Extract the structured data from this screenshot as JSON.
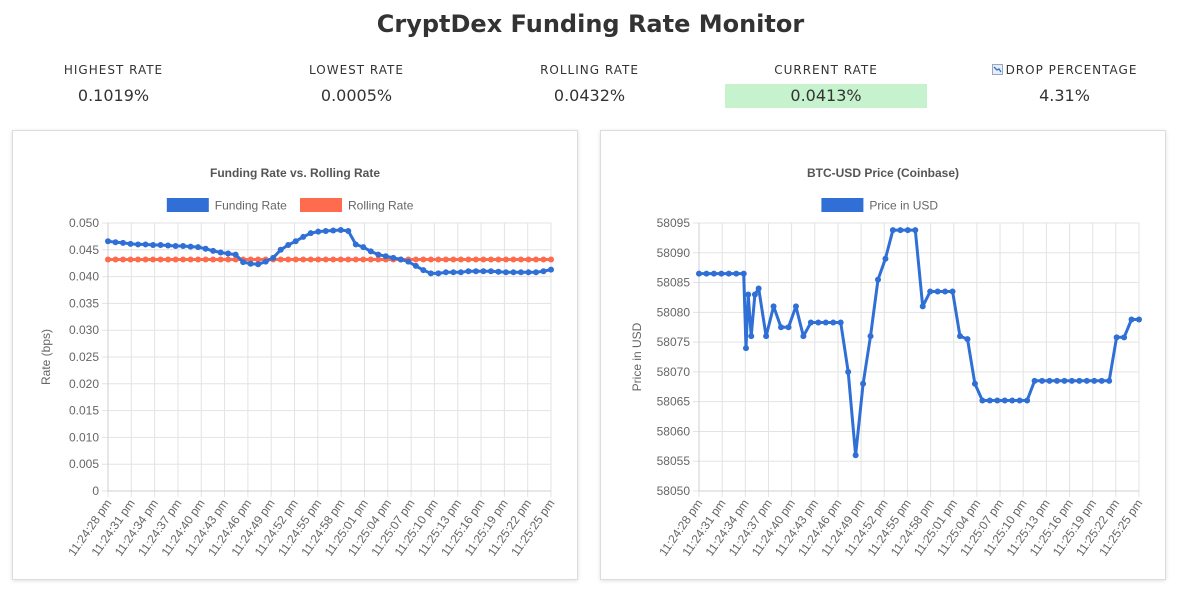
{
  "header": {
    "title": "CryptDex Funding Rate Monitor"
  },
  "stats": [
    {
      "label": "HIGHEST RATE",
      "value": "0.1019%",
      "highlight": false
    },
    {
      "label": "LOWEST RATE",
      "value": "0.0005%",
      "highlight": false
    },
    {
      "label": "ROLLING RATE",
      "value": "0.0432%",
      "highlight": false
    },
    {
      "label": "CURRENT RATE",
      "value": "0.0413%",
      "highlight": true
    },
    {
      "label": "DROP PERCENTAGE",
      "value": "4.31%",
      "highlight": false,
      "icon": "chart-decreasing-icon"
    }
  ],
  "colors": {
    "funding": "#2f6fd6",
    "rolling": "#ff6b4d",
    "highlight": "#c6f2cd"
  },
  "chart_data": [
    {
      "type": "line",
      "title": "Funding Rate vs. Rolling Rate",
      "ylabel": "Rate (bps)",
      "ylim": [
        0,
        0.05
      ],
      "yticks": [
        0,
        0.005,
        0.01,
        0.015,
        0.02,
        0.025,
        0.03,
        0.035,
        0.04,
        0.045,
        0.05
      ],
      "ytick_labels": [
        "0",
        "0.005",
        "0.010",
        "0.015",
        "0.020",
        "0.025",
        "0.030",
        "0.035",
        "0.040",
        "0.045",
        "0.050"
      ],
      "xtick_labels": [
        "11:24:28 pm",
        "11:24:31 pm",
        "11:24:34 pm",
        "11:24:37 pm",
        "11:24:40 pm",
        "11:24:43 pm",
        "11:24:46 pm",
        "11:24:49 pm",
        "11:24:52 pm",
        "11:24:55 pm",
        "11:24:58 pm",
        "11:25:01 pm",
        "11:25:04 pm",
        "11:25:07 pm",
        "11:25:10 pm",
        "11:25:13 pm",
        "11:25:16 pm",
        "11:25:19 pm",
        "11:25:22 pm",
        "11:25:25 pm"
      ],
      "xlim": [
        0,
        59
      ],
      "legend": "top",
      "grid": true,
      "series": [
        {
          "name": "Funding Rate",
          "x": [
            0,
            1,
            2,
            3,
            4,
            5,
            6,
            7,
            8,
            9,
            10,
            11,
            12,
            13,
            14,
            15,
            16,
            17,
            18,
            19,
            20,
            21,
            22,
            23,
            24,
            25,
            26,
            27,
            28,
            29,
            30,
            31,
            32,
            33,
            34,
            35,
            36,
            37,
            38,
            39,
            40,
            41,
            42,
            43,
            44,
            45,
            46,
            47,
            48,
            49,
            50,
            51,
            52,
            53,
            54,
            55,
            56,
            57,
            58,
            59
          ],
          "values": [
            0.0466,
            0.0464,
            0.0463,
            0.0461,
            0.046,
            0.046,
            0.0459,
            0.0459,
            0.0458,
            0.0457,
            0.0457,
            0.0456,
            0.0455,
            0.0452,
            0.0448,
            0.0445,
            0.0443,
            0.0441,
            0.0427,
            0.0424,
            0.0423,
            0.0428,
            0.0435,
            0.045,
            0.0459,
            0.0466,
            0.0474,
            0.0481,
            0.0484,
            0.0485,
            0.0486,
            0.0487,
            0.0485,
            0.046,
            0.0455,
            0.0447,
            0.0441,
            0.0438,
            0.0435,
            0.0432,
            0.0428,
            0.042,
            0.0412,
            0.0406,
            0.0406,
            0.0408,
            0.0408,
            0.0408,
            0.041,
            0.041,
            0.041,
            0.041,
            0.0409,
            0.0408,
            0.0408,
            0.0408,
            0.0408,
            0.0408,
            0.041,
            0.0413
          ],
          "color": "#2f6fd6"
        },
        {
          "name": "Rolling Rate",
          "x": [
            0,
            59
          ],
          "values": [
            0.0432,
            0.0432
          ],
          "color": "#ff6b4d"
        }
      ]
    },
    {
      "type": "line",
      "title": "BTC-USD Price (Coinbase)",
      "ylabel": "Price in USD",
      "ylim": [
        58050,
        58095
      ],
      "yticks": [
        58050,
        58055,
        58060,
        58065,
        58070,
        58075,
        58080,
        58085,
        58090,
        58095
      ],
      "ytick_labels": [
        "58050",
        "58055",
        "58060",
        "58065",
        "58070",
        "58075",
        "58080",
        "58085",
        "58090",
        "58095"
      ],
      "xtick_labels": [
        "11:24:28 pm",
        "11:24:31 pm",
        "11:24:34 pm",
        "11:24:37 pm",
        "11:24:40 pm",
        "11:24:43 pm",
        "11:24:46 pm",
        "11:24:49 pm",
        "11:24:52 pm",
        "11:24:55 pm",
        "11:24:58 pm",
        "11:25:01 pm",
        "11:25:04 pm",
        "11:25:07 pm",
        "11:25:10 pm",
        "11:25:13 pm",
        "11:25:16 pm",
        "11:25:19 pm",
        "11:25:22 pm",
        "11:25:25 pm"
      ],
      "xlim": [
        0,
        59
      ],
      "legend": "top",
      "grid": true,
      "series": [
        {
          "name": "Price in USD",
          "x": [
            0,
            1,
            2,
            3,
            4,
            5,
            6,
            6.3,
            6.6,
            7,
            7.5,
            8,
            9,
            10,
            11,
            12,
            13,
            14,
            15,
            16,
            17,
            18,
            19,
            20,
            21,
            22,
            23,
            24,
            25,
            26,
            27,
            28,
            29,
            30,
            31,
            32,
            33,
            34,
            35,
            36,
            37,
            38,
            39,
            40,
            41,
            42,
            43,
            44,
            45,
            46,
            47,
            48,
            49,
            50,
            51,
            52,
            53,
            54,
            55,
            56,
            57,
            58,
            59
          ],
          "values": [
            58086.5,
            58086.5,
            58086.5,
            58086.5,
            58086.5,
            58086.5,
            58086.5,
            58074,
            58083,
            58076,
            58083,
            58084,
            58076,
            58081,
            58077.5,
            58077.5,
            58081,
            58076,
            58078.3,
            58078.3,
            58078.3,
            58078.3,
            58078.3,
            58070,
            58056,
            58068,
            58076,
            58085.5,
            58089,
            58093.8,
            58093.8,
            58093.8,
            58093.8,
            58081,
            58083.5,
            58083.5,
            58083.5,
            58083.5,
            58076,
            58075.5,
            58068,
            58065.2,
            58065.2,
            58065.2,
            58065.2,
            58065.2,
            58065.2,
            58065.2,
            58068.5,
            58068.5,
            58068.5,
            58068.5,
            58068.5,
            58068.5,
            58068.5,
            58068.5,
            58068.5,
            58068.5,
            58068.5,
            58075.8,
            58075.8,
            58078.8,
            58078.8
          ],
          "color": "#2f6fd6"
        }
      ]
    }
  ]
}
